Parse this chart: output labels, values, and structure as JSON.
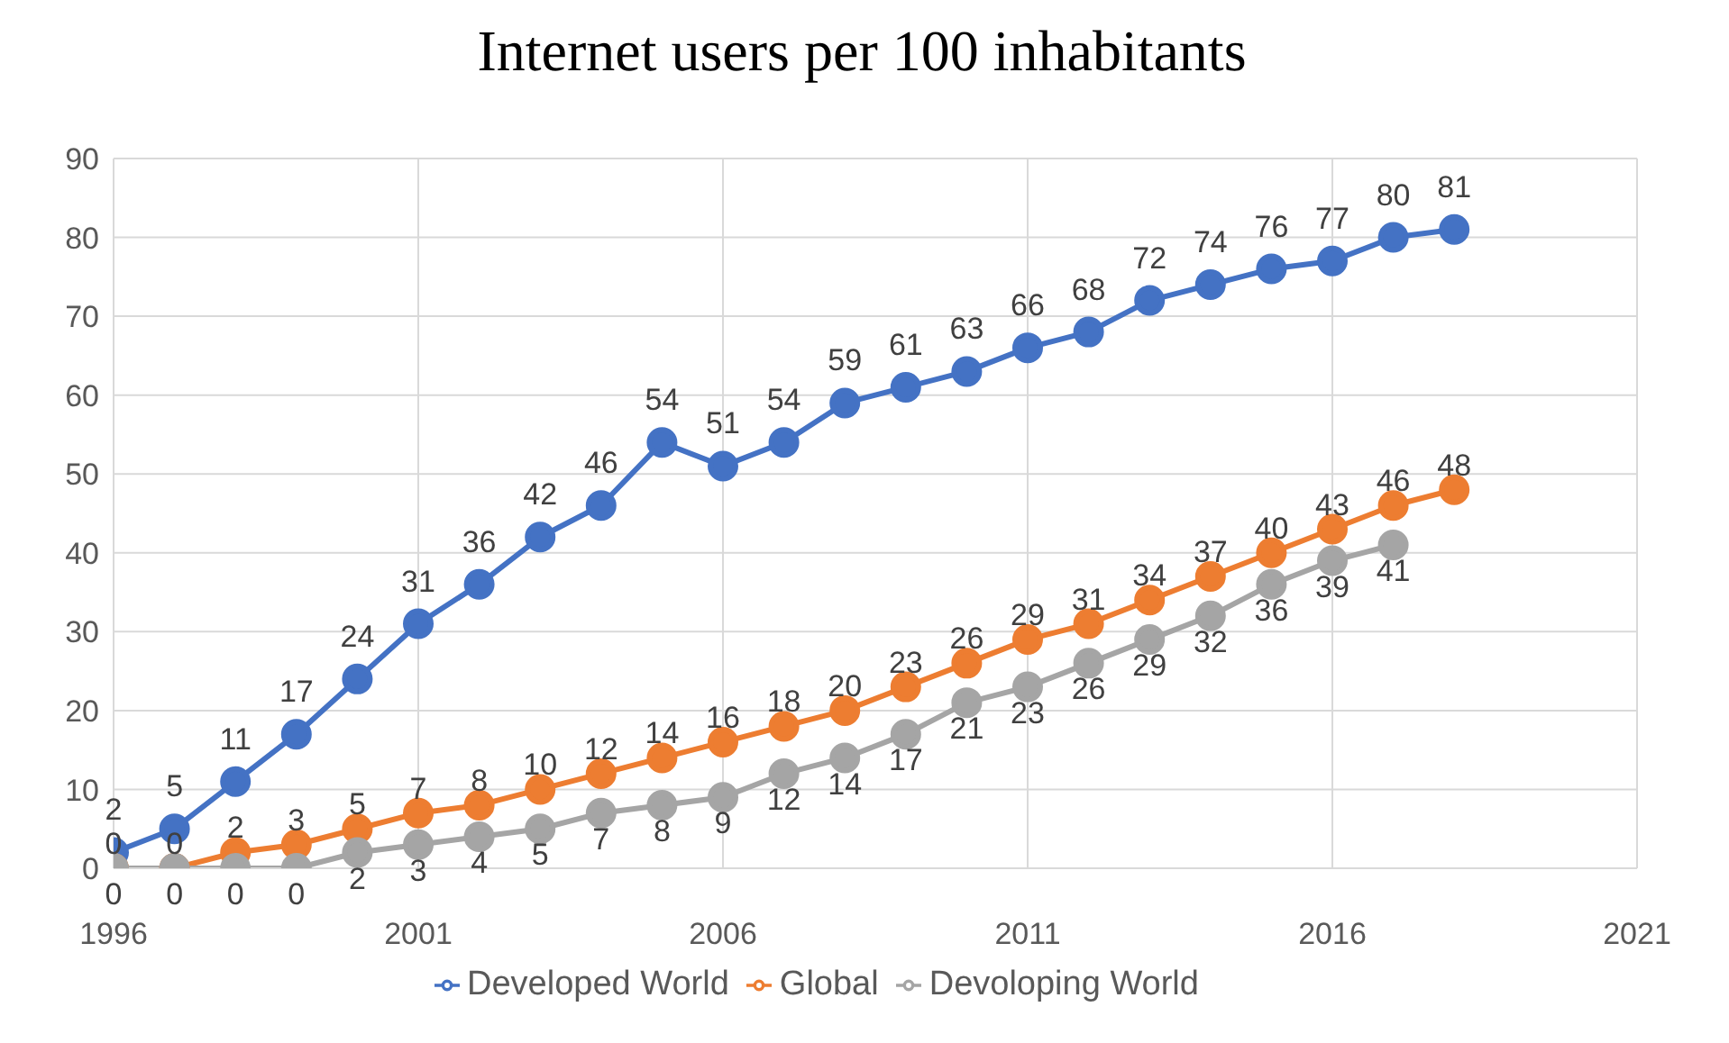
{
  "chart_data": {
    "type": "line",
    "title": "Internet users per 100 inhabitants",
    "x": [
      1996,
      1997,
      1998,
      1999,
      2000,
      2001,
      2002,
      2003,
      2004,
      2005,
      2006,
      2007,
      2008,
      2009,
      2010,
      2011,
      2012,
      2013,
      2014,
      2015,
      2016,
      2017,
      2018
    ],
    "series": [
      {
        "name": "Developed World",
        "color": "#4472c4",
        "values": [
          2,
          5,
          11,
          17,
          24,
          31,
          36,
          42,
          46,
          54,
          51,
          54,
          59,
          61,
          63,
          66,
          68,
          72,
          74,
          76,
          77,
          80,
          81
        ]
      },
      {
        "name": "Global",
        "color": "#ed7d31",
        "values": [
          0,
          0,
          2,
          3,
          5,
          7,
          8,
          10,
          12,
          14,
          16,
          18,
          20,
          23,
          26,
          29,
          31,
          34,
          37,
          40,
          43,
          46,
          48
        ]
      },
      {
        "name": "Devoloping World",
        "color": "#a5a5a5",
        "values": [
          0,
          0,
          0,
          0,
          2,
          3,
          4,
          5,
          7,
          8,
          9,
          12,
          14,
          17,
          21,
          23,
          26,
          29,
          32,
          36,
          39,
          41,
          null
        ]
      }
    ],
    "xlim": [
      1996,
      2021
    ],
    "xticks": [
      1996,
      2001,
      2006,
      2011,
      2016,
      2021
    ],
    "ylim": [
      0,
      90
    ],
    "yticks": [
      0,
      10,
      20,
      30,
      40,
      50,
      60,
      70,
      80,
      90
    ],
    "grid": true,
    "legend": "bottom",
    "marker": "circle",
    "line_style": "solid",
    "data_labels": true
  }
}
